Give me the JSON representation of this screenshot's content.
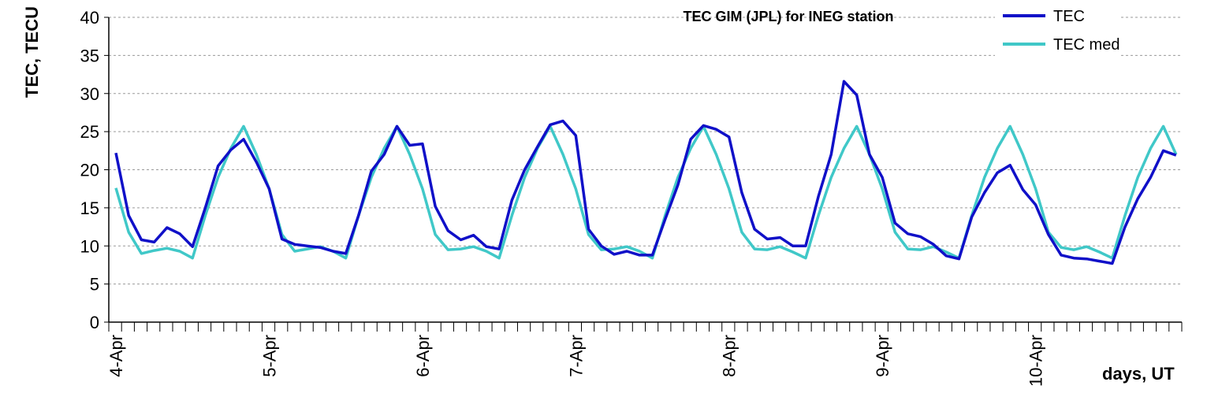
{
  "chart_data": {
    "type": "line",
    "title": "TEC GIM (JPL) for INEG station",
    "xlabel": "days, UT",
    "ylabel": "TEC, TECU",
    "ylim": [
      0,
      40
    ],
    "yticks": [
      0,
      5,
      10,
      15,
      20,
      25,
      30,
      35,
      40
    ],
    "grid": true,
    "legend_position": "top-right",
    "x_tick_labels": [
      "4-Apr",
      "5-Apr",
      "6-Apr",
      "7-Apr",
      "8-Apr",
      "9-Apr",
      "10-Apr"
    ],
    "samples_per_day": 12,
    "series": [
      {
        "name": "TEC",
        "color": "#1010C8",
        "values": [
          22.2,
          14.0,
          10.8,
          10.5,
          12.4,
          11.6,
          9.9,
          15.0,
          20.5,
          22.6,
          24.0,
          21.0,
          17.5,
          10.9,
          10.2,
          10.0,
          9.8,
          9.3,
          9.0,
          14.0,
          19.8,
          22.0,
          25.7,
          23.2,
          23.4,
          15.2,
          12.0,
          10.8,
          11.4,
          9.9,
          9.6,
          16.0,
          20.0,
          23.0,
          25.9,
          26.4,
          24.5,
          12.2,
          10.0,
          8.9,
          9.3,
          8.8,
          8.8,
          13.5,
          18.0,
          24.0,
          25.8,
          25.3,
          24.3,
          17.0,
          12.2,
          10.9,
          11.1,
          10.0,
          10.0,
          16.5,
          22.0,
          31.6,
          29.8,
          22.0,
          19.0,
          13.0,
          11.6,
          11.2,
          10.2,
          8.7,
          8.3,
          13.8,
          17.0,
          19.6,
          20.6,
          17.4,
          15.4,
          11.5,
          8.8,
          8.4,
          8.3,
          8.0,
          7.7,
          12.5,
          16.2,
          19.0,
          22.5,
          21.9
        ]
      },
      {
        "name": "TEC med",
        "color": "#40C8C8",
        "values": [
          17.6,
          11.8,
          9.0,
          9.4,
          9.7,
          9.3,
          8.4,
          14.0,
          19.0,
          22.8,
          25.7,
          22.0,
          17.5,
          11.5,
          9.3,
          9.6,
          9.9,
          9.3,
          8.4,
          14.0,
          19.0,
          22.8,
          25.7,
          22.0,
          17.5,
          11.5,
          9.5,
          9.6,
          9.9,
          9.3,
          8.4,
          14.0,
          19.0,
          22.8,
          25.7,
          22.0,
          17.5,
          11.5,
          9.5,
          9.6,
          9.9,
          9.3,
          8.4,
          14.0,
          19.0,
          22.8,
          25.7,
          22.0,
          17.5,
          11.8,
          9.6,
          9.5,
          9.9,
          9.2,
          8.4,
          14.0,
          19.0,
          22.8,
          25.7,
          22.0,
          17.5,
          11.8,
          9.6,
          9.5,
          9.9,
          9.2,
          8.4,
          14.0,
          19.0,
          22.8,
          25.7,
          22.0,
          17.5,
          11.8,
          9.8,
          9.5,
          9.9,
          9.2,
          8.4,
          14.0,
          19.0,
          22.8,
          25.7,
          22.0
        ]
      }
    ]
  }
}
